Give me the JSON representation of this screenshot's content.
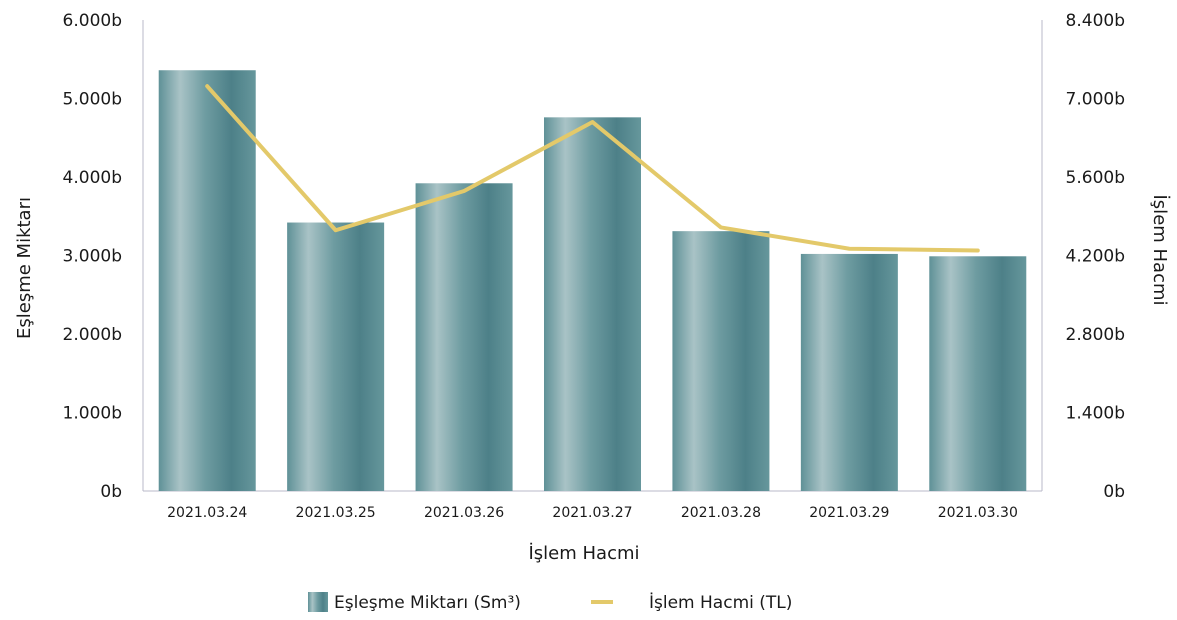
{
  "chart_data": {
    "type": "bar",
    "categories": [
      "2021.03.24",
      "2021.03.25",
      "2021.03.26",
      "2021.03.27",
      "2021.03.28",
      "2021.03.29",
      "2021.03.30"
    ],
    "series": [
      {
        "name": "Eşleşme Miktarı (Sm³)",
        "type": "bar",
        "axis": "left",
        "color": "#5e9197",
        "values": [
          5.36,
          3.42,
          3.92,
          4.76,
          3.31,
          3.02,
          2.99
        ]
      },
      {
        "name": "İşlem Hacmi (TL)",
        "type": "line",
        "axis": "right",
        "color": "#e3c96a",
        "values": [
          7.22,
          4.65,
          5.35,
          6.58,
          4.7,
          4.32,
          4.29
        ]
      }
    ],
    "xlabel": "İşlem Hacmi",
    "ylabel_left": "Eşleşme Miktarı",
    "ylabel_right": "İşlem Hacmi",
    "ylim_left": [
      0,
      6
    ],
    "ylim_right": [
      0,
      8.4
    ],
    "yticks_left": [
      "0b",
      "1.000b",
      "2.000b",
      "3.000b",
      "4.000b",
      "5.000b",
      "6.000b"
    ],
    "yticks_right": [
      "0b",
      "1.400b",
      "2.800b",
      "4.200b",
      "5.600b",
      "7.000b",
      "8.400b"
    ],
    "grid": false,
    "legend_position": "bottom-center"
  }
}
